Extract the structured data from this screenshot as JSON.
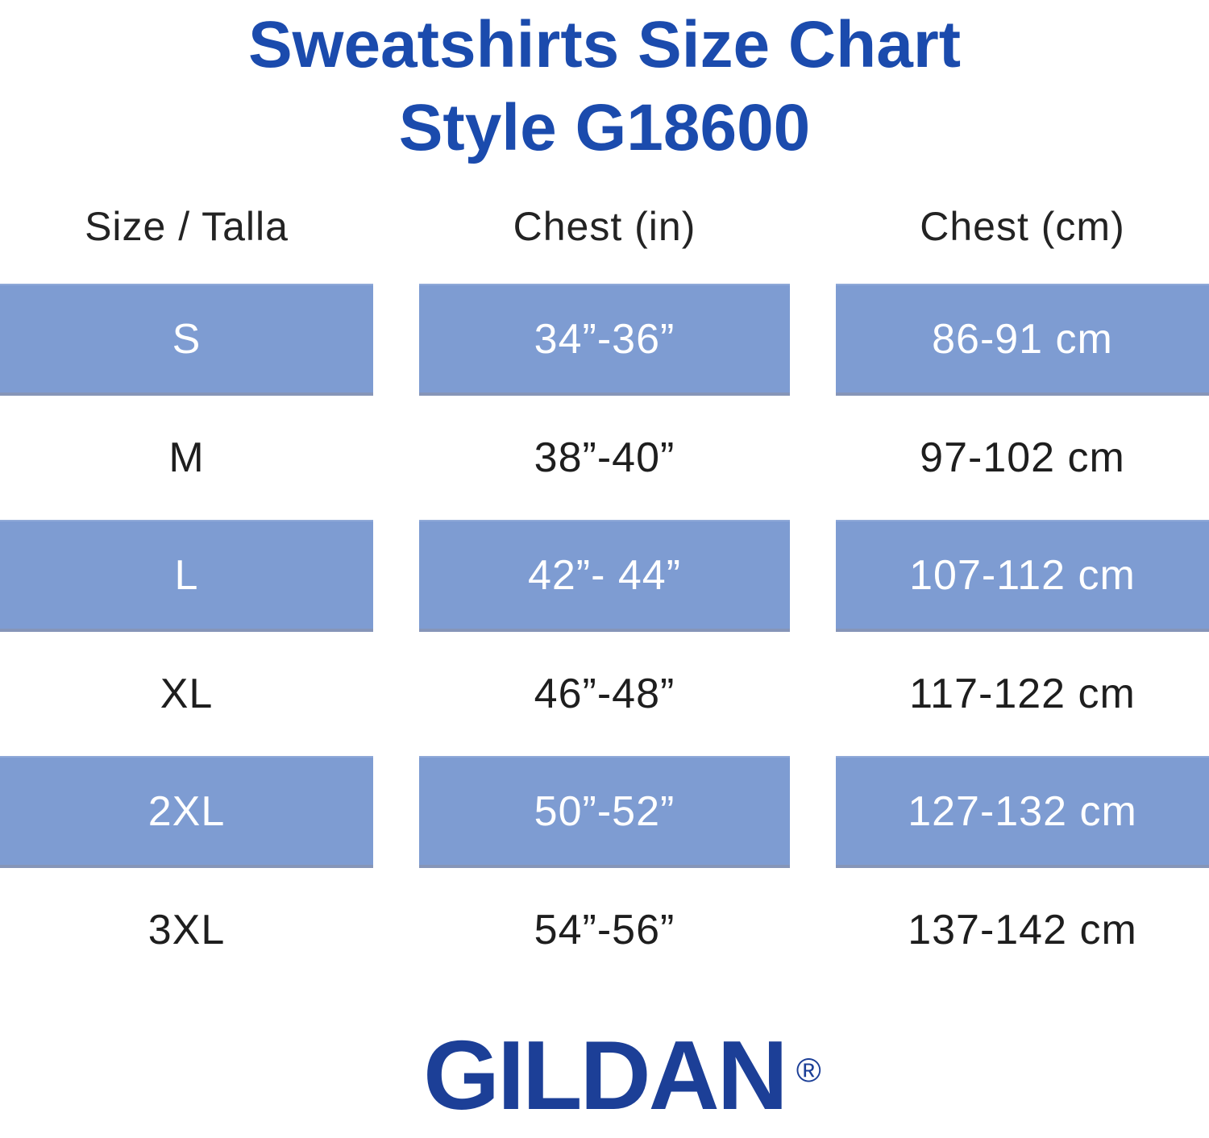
{
  "title": {
    "line1": "Sweatshirts Size Chart",
    "line2": "Style G18600"
  },
  "chart_data": {
    "type": "table",
    "title": "Sweatshirts Size Chart Style G18600",
    "columns": [
      "Size / Talla",
      "Chest (in)",
      "Chest (cm)"
    ],
    "rows": [
      [
        "S",
        "34”-36”",
        "86-91 cm"
      ],
      [
        "M",
        "38”-40”",
        "97-102 cm"
      ],
      [
        "L",
        "42”- 44”",
        "107-112 cm"
      ],
      [
        "XL",
        "46”-48”",
        "117-122 cm"
      ],
      [
        "2XL",
        "50”-52”",
        "127-132 cm"
      ],
      [
        "3XL",
        "54”-56”",
        "137-142 cm"
      ]
    ],
    "highlighted_rows": [
      "S",
      "L",
      "2XL"
    ],
    "layout": {
      "legend": "none",
      "grid": "off",
      "striping": "alternate rows highlighted starting with first data row"
    }
  },
  "brand": {
    "logo_text": "GILDAN",
    "registered_mark": "®"
  },
  "colors": {
    "title_blue": "#1b4bad",
    "logo_blue": "#1c3f97",
    "row_highlight": "#7e9cd2",
    "row_highlight_edge": "#8695b8",
    "row_text_light": "#ffffff",
    "text_dark": "#1e1e1e",
    "background": "#ffffff"
  }
}
